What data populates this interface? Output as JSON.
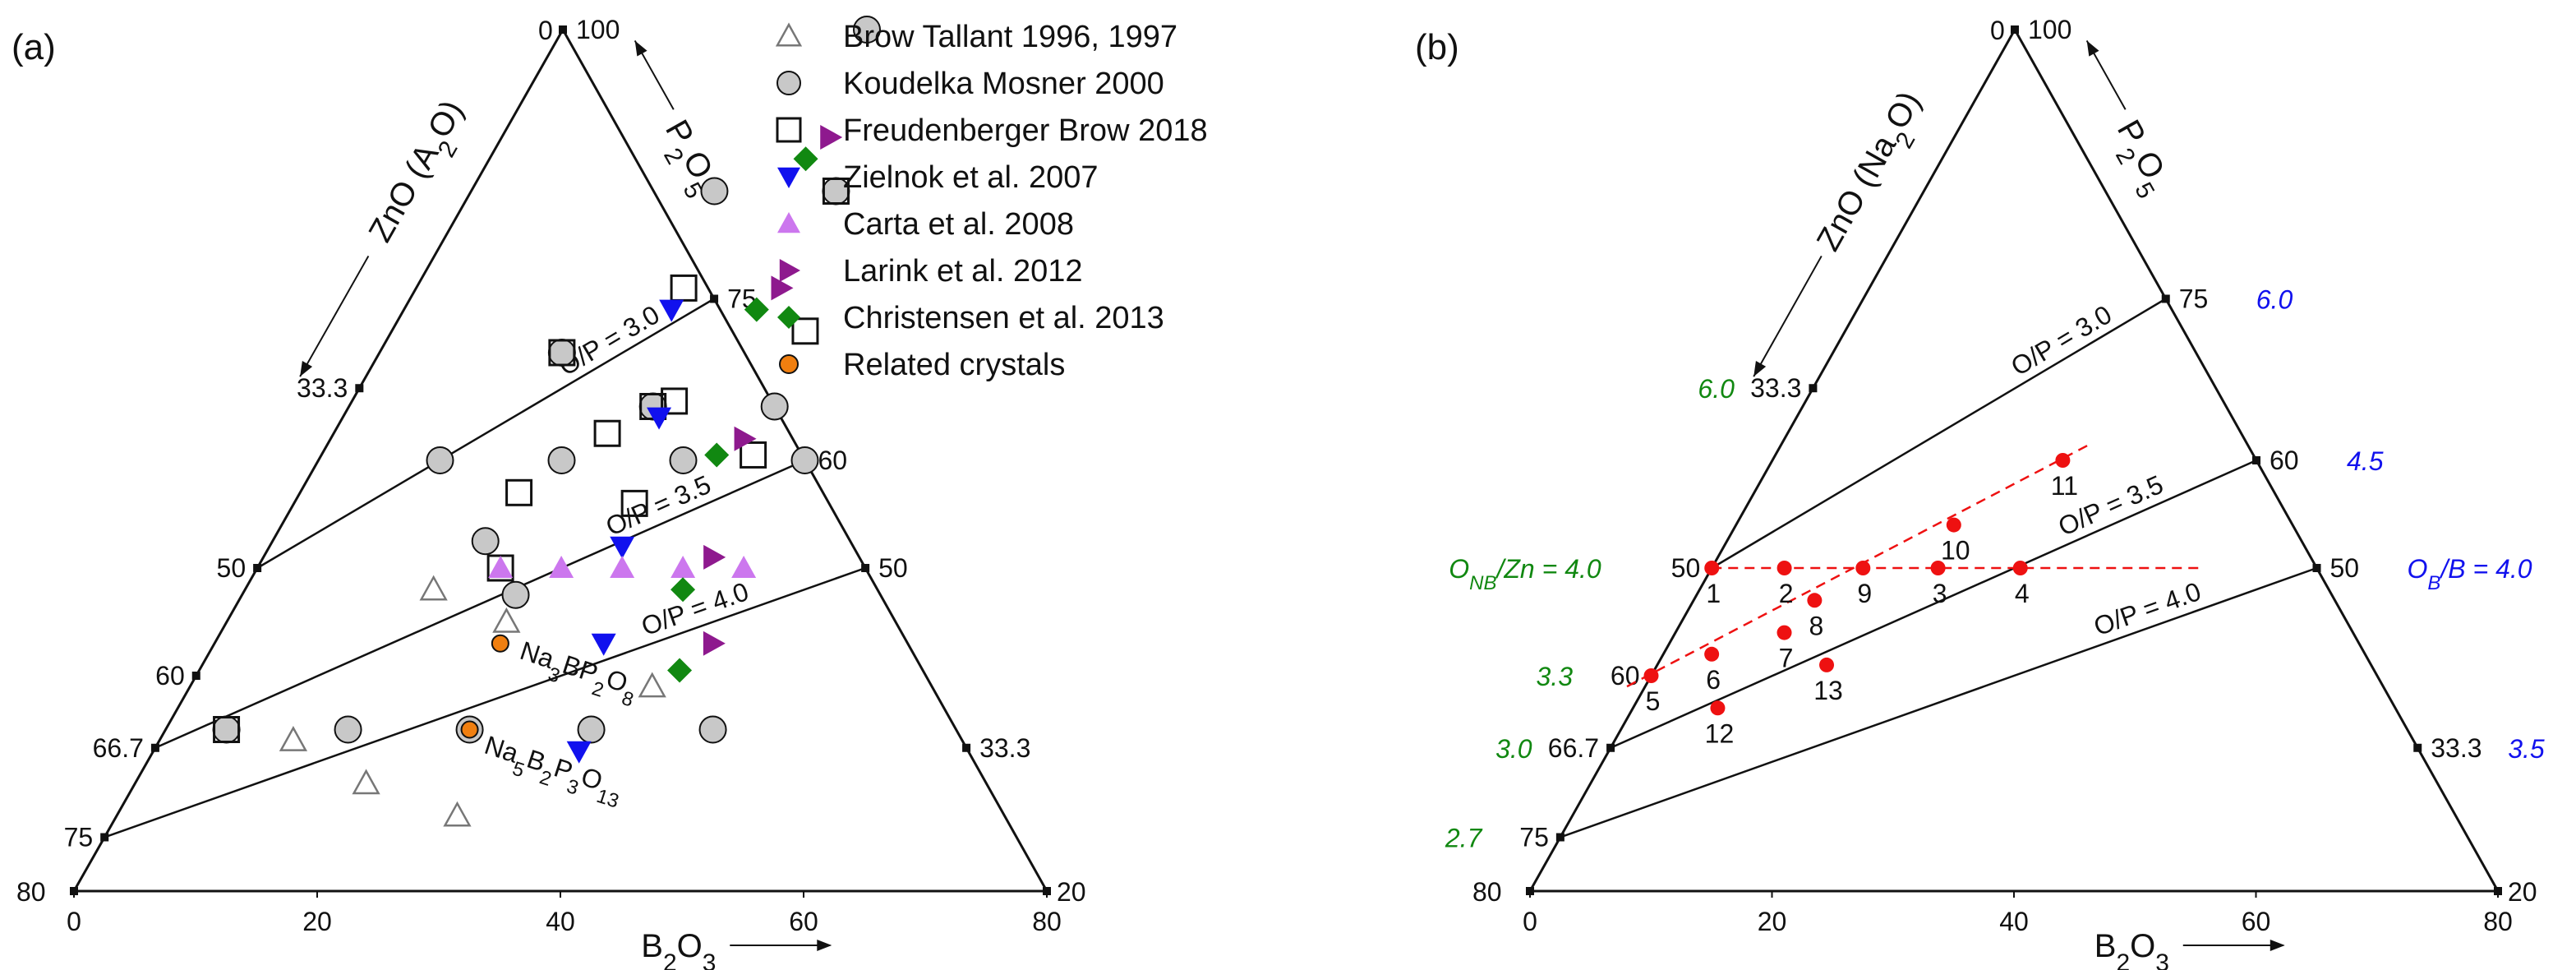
{
  "panels": [
    {
      "label": "(a)",
      "chart_data": {
        "type": "scatter",
        "coordinate_system": "ternary",
        "axes": {
          "left": {
            "label": "ZnO (A2O)",
            "ticks": [
              {
                "value": 0,
                "label": "0"
              },
              {
                "value": 33.3,
                "label": "33.3"
              },
              {
                "value": 50,
                "label": "50"
              },
              {
                "value": 60,
                "label": "60"
              },
              {
                "value": 66.7,
                "label": "66.7"
              },
              {
                "value": 75,
                "label": "75"
              },
              {
                "value": 80,
                "label": "80"
              }
            ]
          },
          "right": {
            "label": "P2O5",
            "ticks": [
              {
                "value": 100,
                "label": "100"
              },
              {
                "value": 75,
                "label": "75"
              },
              {
                "value": 60,
                "label": "60"
              },
              {
                "value": 50,
                "label": "50"
              },
              {
                "value": 33.3,
                "label": "33.3"
              },
              {
                "value": 20,
                "label": "20"
              }
            ]
          },
          "bottom": {
            "label": "B2O3",
            "ticks": [
              {
                "value": 0,
                "label": "0"
              },
              {
                "value": 20,
                "label": "20"
              },
              {
                "value": 40,
                "label": "40"
              },
              {
                "value": 60,
                "label": "60"
              },
              {
                "value": 80,
                "label": "80"
              }
            ]
          }
        },
        "lines": [
          {
            "label": "O/P = 3.0"
          },
          {
            "label": "O/P = 3.5"
          },
          {
            "label": "O/P = 4.0"
          }
        ],
        "legend_position": "top-right",
        "series": [
          {
            "name": "Brow Tallant 1996, 1997",
            "marker": "triangle-up-open",
            "color": "#777777",
            "points": [
              [
                15.5,
                52
              ],
              [
                23,
                55
              ],
              [
                11,
                66
              ],
              [
                19,
                70
              ],
              [
                28,
                73
              ],
              [
                38,
                61
              ]
            ]
          },
          {
            "name": "Koudelka Mosner 2000",
            "marker": "circle",
            "color": "#c8c8c8",
            "points": [
              [
                25,
                0
              ],
              [
                20,
                15
              ],
              [
                30,
                15
              ],
              [
                15,
                30
              ],
              [
                25,
                35
              ],
              [
                35,
                35
              ],
              [
                10,
                40
              ],
              [
                20,
                40
              ],
              [
                30,
                40
              ],
              [
                40,
                40
              ],
              [
                17.5,
                47.5
              ],
              [
                22.5,
                52.5
              ],
              [
                5,
                65
              ],
              [
                15,
                65
              ],
              [
                25,
                65
              ],
              [
                35,
                65
              ],
              [
                45,
                65
              ]
            ]
          },
          {
            "name": "Freudenberger Brow 2018",
            "marker": "square-open",
            "color": "#111111",
            "points": [
              [
                30,
                15
              ],
              [
                22,
                24
              ],
              [
                34,
                28
              ],
              [
                15,
                30
              ],
              [
                26.5,
                34.5
              ],
              [
                25,
                35
              ],
              [
                22.5,
                37.5
              ],
              [
                35.5,
                39.5
              ],
              [
                18,
                43
              ],
              [
                28,
                44
              ],
              [
                20,
                50
              ],
              [
                5,
                65
              ]
            ]
          },
          {
            "name": "Zielnok et al. 2007",
            "marker": "triangle-down",
            "color": "#1111ee",
            "points": [
              [
                22,
                26
              ],
              [
                26,
                36
              ],
              [
                29,
                48
              ],
              [
                32,
                57
              ],
              [
                35,
                67
              ]
            ]
          },
          {
            "name": "Carta et al. 2008",
            "marker": "triangle-up",
            "color": "#cc77ee",
            "points": [
              [
                20,
                50
              ],
              [
                25,
                50
              ],
              [
                30,
                50
              ],
              [
                35,
                50
              ],
              [
                40,
                50
              ]
            ]
          },
          {
            "name": "Larink et al. 2012",
            "marker": "triangle-right",
            "color": "#8e198e",
            "points": [
              [
                27,
                10
              ],
              [
                30,
                24
              ],
              [
                34,
                38
              ],
              [
                37,
                49
              ],
              [
                41,
                57
              ]
            ]
          },
          {
            "name": "Christensen et al. 2013",
            "marker": "diamond",
            "color": "#118811",
            "points": [
              [
                26,
                12
              ],
              [
                29,
                26
              ],
              [
                32.5,
                39.5
              ],
              [
                36,
                52
              ],
              [
                39.5,
                59.5
              ]
            ]
          },
          {
            "name": "Related crystals",
            "marker": "circle",
            "color": "#f07f10",
            "points": [
              [
                23.5,
                57
              ],
              [
                25,
                65
              ]
            ]
          }
        ],
        "annotations": [
          {
            "text": "Na3BP2O8",
            "base": "Na",
            "parts": [
              [
                "3",
                ""
              ],
              [
                "BP",
                ""
              ],
              [
                "2",
                ""
              ],
              [
                "O",
                ""
              ],
              [
                "8",
                ""
              ]
            ]
          },
          {
            "text": "Na5B2P3O13"
          }
        ]
      }
    },
    {
      "label": "(b)",
      "chart_data": {
        "type": "scatter",
        "coordinate_system": "ternary",
        "axes": {
          "left": {
            "label": "ZnO (Na2O)",
            "ticks": [
              {
                "value": 0,
                "label": "0"
              },
              {
                "value": 33.3,
                "label": "33.3"
              },
              {
                "value": 50,
                "label": "50"
              },
              {
                "value": 60,
                "label": "60"
              },
              {
                "value": 66.7,
                "label": "66.7"
              },
              {
                "value": 75,
                "label": "75"
              },
              {
                "value": 80,
                "label": "80"
              }
            ]
          },
          "right": {
            "label": "P2O5",
            "ticks": [
              {
                "value": 100,
                "label": "100"
              },
              {
                "value": 75,
                "label": "75"
              },
              {
                "value": 60,
                "label": "60"
              },
              {
                "value": 50,
                "label": "50"
              },
              {
                "value": 33.3,
                "label": "33.3"
              },
              {
                "value": 20,
                "label": "20"
              }
            ]
          },
          "bottom": {
            "label": "B2O3",
            "ticks": [
              {
                "value": 0,
                "label": "0"
              },
              {
                "value": 20,
                "label": "20"
              },
              {
                "value": 40,
                "label": "40"
              },
              {
                "value": 60,
                "label": "60"
              },
              {
                "value": 80,
                "label": "80"
              }
            ]
          }
        },
        "lines": [
          {
            "label": "O/P = 3.0"
          },
          {
            "label": "O/P = 3.5"
          },
          {
            "label": "O/P = 4.0"
          }
        ],
        "left_scale": {
          "title": "ONB/Zn = 4.0",
          "labels": [
            "6.0",
            "3.3",
            "3.0",
            "2.7"
          ],
          "color": "#118811"
        },
        "right_scale": {
          "title": "OB/B = 4.0",
          "labels": [
            "6.0",
            "4.5",
            "3.5"
          ],
          "color": "#1111ee"
        },
        "samples": {
          "color": "#ee1111",
          "points": [
            {
              "label": "1",
              "b2o3": 0,
              "zno": 50
            },
            {
              "label": "2",
              "b2o3": 6,
              "zno": 50
            },
            {
              "label": "3",
              "b2o3": 18.7,
              "zno": 50
            },
            {
              "label": "4",
              "b2o3": 25.5,
              "zno": 50
            },
            {
              "label": "5",
              "b2o3": 0,
              "zno": 60
            },
            {
              "label": "6",
              "b2o3": 4,
              "zno": 58
            },
            {
              "label": "7",
              "b2o3": 9,
              "zno": 56
            },
            {
              "label": "8",
              "b2o3": 10,
              "zno": 53
            },
            {
              "label": "9",
              "b2o3": 12.5,
              "zno": 50
            },
            {
              "label": "10",
              "b2o3": 18,
              "zno": 46
            },
            {
              "label": "11",
              "b2o3": 24,
              "zno": 40
            },
            {
              "label": "12",
              "b2o3": 7,
              "zno": 63
            },
            {
              "label": "13",
              "b2o3": 14,
              "zno": 59
            }
          ]
        },
        "dashed_lines": [
          {
            "from": {
              "b2o3": -1.5,
              "zno": 61
            },
            "to": {
              "b2o3": 25.5,
              "zno": 38.5
            }
          },
          {
            "from": {
              "b2o3": 0,
              "zno": 50
            },
            "to": {
              "b2o3": 40.5,
              "zno": 50
            }
          }
        ]
      }
    }
  ],
  "colors": {
    "axis": "#111111",
    "green_scale": "#118811",
    "blue_scale": "#1111ee",
    "sample_red": "#ee1111"
  }
}
